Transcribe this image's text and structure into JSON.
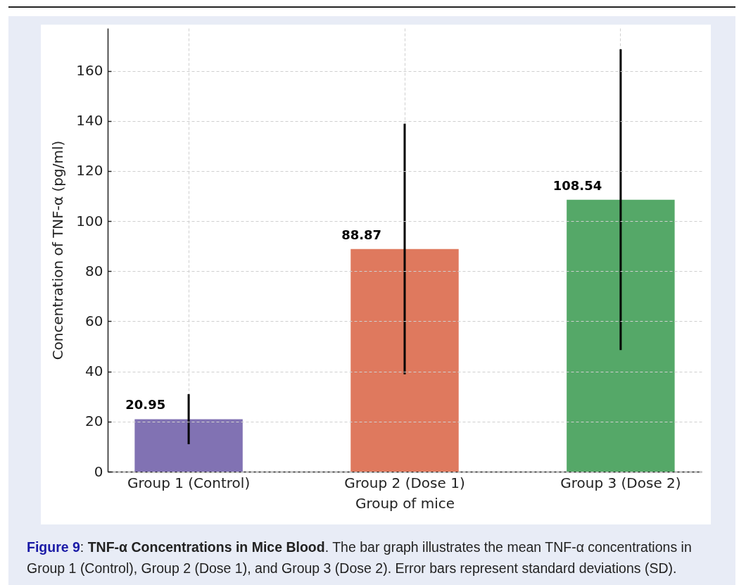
{
  "chart_data": {
    "type": "bar",
    "categories": [
      "Group 1 (Control)",
      "Group 2 (Dose 1)",
      "Group 3 (Dose 2)"
    ],
    "values": [
      20.95,
      88.87,
      108.54
    ],
    "colors": [
      "#8172b3",
      "#df795e",
      "#55a868"
    ],
    "errors": [
      10,
      50,
      60
    ],
    "xlabel": "Group of mice",
    "ylabel": "Concentration of TNF-α (pg/ml)",
    "ylim": [
      0,
      177
    ],
    "yticks": [
      0,
      20,
      40,
      60,
      80,
      100,
      120,
      140,
      160
    ],
    "grid": true,
    "data_labels": true,
    "annotations": [
      "Figure 9: TNF-α Concentrations in Mice Blood. The bar graph illustrates the mean TNF-α concentrations in Group 1 (Control), Group 2 (Dose 1), and Group 3 (Dose 2). Error bars represent standard deviations (SD)."
    ]
  }
}
